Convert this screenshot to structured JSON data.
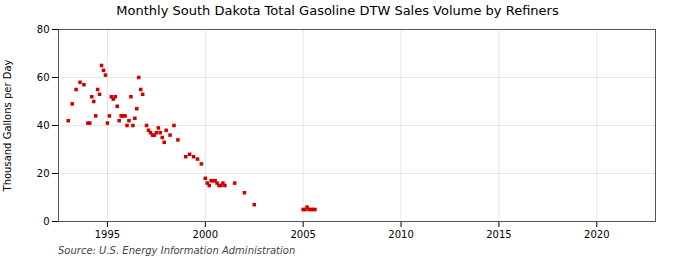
{
  "chart_data": {
    "type": "scatter",
    "title": "Monthly South Dakota Total Gasoline DTW Sales Volume by Refiners",
    "ylabel": "Thousand Gallons per Day",
    "source": "Source: U.S. Energy Information Administration",
    "color": "#cc0000",
    "marker": "square",
    "grid": true,
    "xlim": [
      1992.5,
      2023
    ],
    "xticks": [
      1995,
      2000,
      2005,
      2010,
      2015,
      2020
    ],
    "ylim": [
      0,
      80
    ],
    "yticks": [
      0,
      20,
      40,
      60,
      80
    ],
    "x": [
      1993.0,
      1993.2,
      1993.4,
      1993.6,
      1993.8,
      1994.0,
      1994.1,
      1994.2,
      1994.3,
      1994.4,
      1994.5,
      1994.6,
      1994.7,
      1994.8,
      1994.9,
      1995.0,
      1995.1,
      1995.2,
      1995.3,
      1995.4,
      1995.5,
      1995.6,
      1995.7,
      1995.8,
      1995.9,
      1996.0,
      1996.1,
      1996.2,
      1996.3,
      1996.4,
      1996.5,
      1996.6,
      1996.7,
      1996.8,
      1997.0,
      1997.1,
      1997.2,
      1997.3,
      1997.4,
      1997.5,
      1997.6,
      1997.7,
      1997.8,
      1997.9,
      1998.0,
      1998.2,
      1998.4,
      1998.6,
      1999.0,
      1999.2,
      1999.4,
      1999.6,
      1999.8,
      2000.0,
      2000.1,
      2000.2,
      2000.3,
      2000.4,
      2000.5,
      2000.6,
      2000.7,
      2000.8,
      2000.9,
      2001.0,
      2001.5,
      2002.0,
      2002.5,
      2005.0,
      2005.1,
      2005.2,
      2005.3,
      2005.4,
      2005.5,
      2005.6
    ],
    "values": [
      42,
      49,
      55,
      58,
      57,
      41,
      41,
      52,
      50,
      44,
      55,
      53,
      65,
      63,
      61,
      41,
      44,
      52,
      51,
      52,
      48,
      42,
      44,
      44,
      44,
      40,
      42,
      52,
      40,
      43,
      47,
      60,
      55,
      53,
      40,
      38,
      37,
      36,
      36,
      37,
      39,
      37,
      35,
      33,
      38,
      36,
      40,
      34,
      27,
      28,
      27,
      26,
      24,
      18,
      16,
      15,
      17,
      17,
      17,
      16,
      15,
      15,
      16,
      15,
      16,
      12,
      7,
      5,
      5,
      6,
      5,
      5,
      5,
      5
    ]
  }
}
